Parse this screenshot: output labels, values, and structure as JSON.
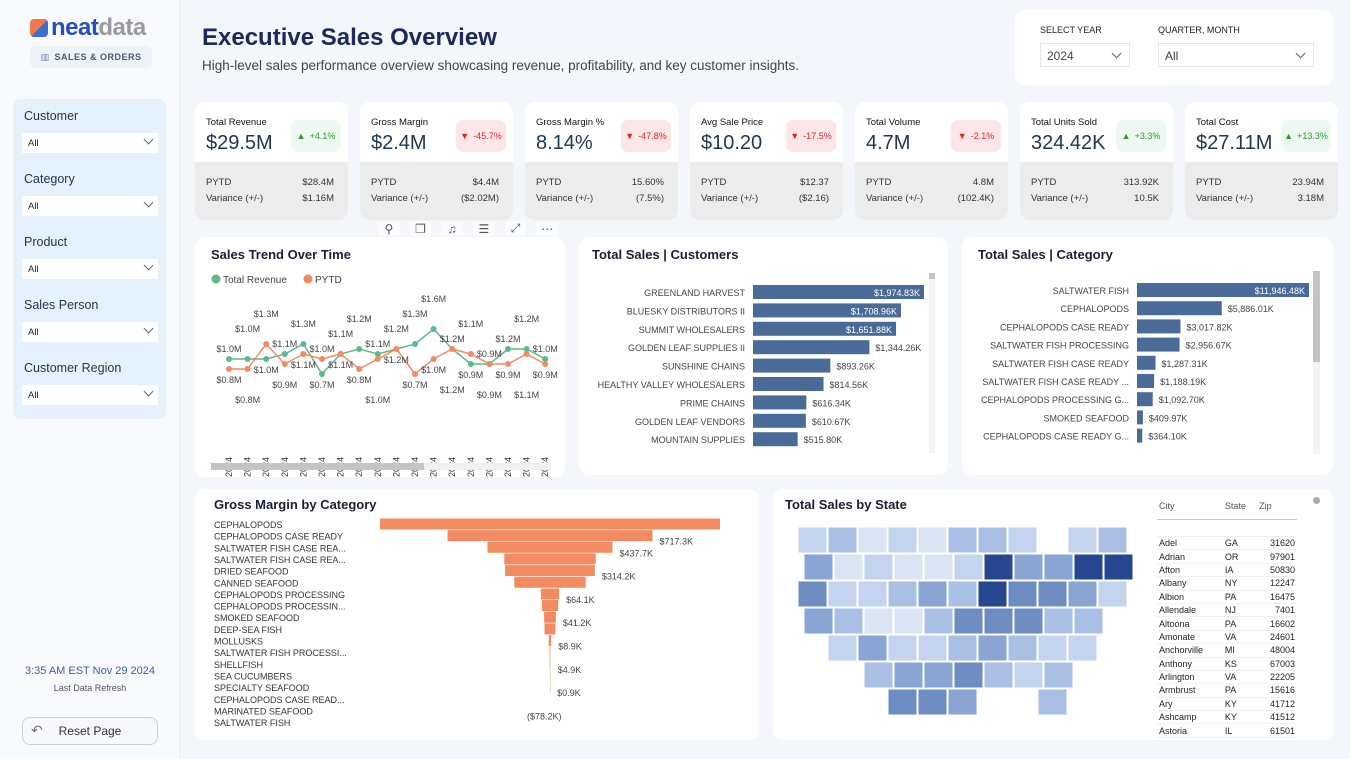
{
  "brand": {
    "logo_part1": "neat",
    "logo_part2": "data",
    "section": "SALES & ORDERS"
  },
  "header": {
    "title": "Executive Sales Overview",
    "subtitle": "High-level sales performance overview showcasing revenue, profitability, and key customer insights."
  },
  "period_filters": {
    "year_label": "SELECT YEAR",
    "year_value": "2024",
    "quarter_label": "QUARTER, MONTH",
    "quarter_value": "All"
  },
  "sidebar_filters": [
    {
      "label": "Customer",
      "value": "All"
    },
    {
      "label": "Category",
      "value": "All"
    },
    {
      "label": "Product",
      "value": "All"
    },
    {
      "label": "Sales Person",
      "value": "All"
    },
    {
      "label": "Customer Region",
      "value": "All"
    }
  ],
  "refresh": {
    "time": "3:35 AM EST Nov 29 2024",
    "label": "Last Data Refresh"
  },
  "reset_label": "Reset Page",
  "kpis": [
    {
      "title": "Total Revenue",
      "value": "$29.5M",
      "change": "+4.1%",
      "dir": "up",
      "pytd": "$28.4M",
      "variance": "$1.16M"
    },
    {
      "title": "Gross Margin",
      "value": "$2.4M",
      "change": "-45.7%",
      "dir": "down",
      "pytd": "$4.4M",
      "variance": "($2.02M)"
    },
    {
      "title": "Gross Margin %",
      "value": "8.14%",
      "change": "-47.8%",
      "dir": "down",
      "pytd": "15.60%",
      "variance": "(7.5%)"
    },
    {
      "title": "Avg Sale Price",
      "value": "$10.20",
      "change": "-17.5%",
      "dir": "down",
      "pytd": "$12.37",
      "variance": "($2.16)"
    },
    {
      "title": "Total Volume",
      "value": "4.7M",
      "change": "-2.1%",
      "dir": "down",
      "pytd": "4.8M",
      "variance": "(102.4K)"
    },
    {
      "title": "Total Units Sold",
      "value": "324.42K",
      "change": "+3.3%",
      "dir": "up",
      "pytd": "313.92K",
      "variance": "10.5K"
    },
    {
      "title": "Total Cost",
      "value": "$27.11M",
      "change": "+13.3%",
      "dir": "up",
      "pytd": "23.94M",
      "variance": "3.18M"
    }
  ],
  "kpi_labels": {
    "pytd": "PYTD",
    "variance": "Variance (+/-)"
  },
  "colors": {
    "up": "#2a9a2a",
    "down": "#e0202a",
    "bar": "#4a6a97",
    "funnel": "#f28a62",
    "revenue": "#5bb98c",
    "pytd": "#f28a62"
  },
  "chart_data": [
    {
      "type": "line",
      "title": "Sales Trend Over Time",
      "categories": [
        "W01 2024",
        "W02 2024",
        "W03 2024",
        "W04 2024",
        "W05 2024",
        "W06 2024",
        "W07 2024",
        "W08 2024",
        "W09 2024",
        "W10 2024",
        "W11 2024",
        "W12 2024",
        "W13 2024",
        "W14 2024",
        "W15 2024",
        "W16 2024",
        "W17 2024",
        "W18 2024"
      ],
      "series": [
        {
          "name": "Total Revenue",
          "values": [
            1.0,
            1.0,
            1.0,
            1.1,
            1.3,
            0.7,
            1.1,
            1.2,
            1.1,
            1.2,
            1.3,
            1.6,
            1.2,
            0.9,
            0.9,
            1.2,
            1.2,
            1.0
          ]
        },
        {
          "name": "PYTD",
          "values": [
            0.8,
            0.8,
            1.3,
            0.9,
            1.1,
            1.0,
            1.1,
            0.8,
            1.0,
            1.2,
            0.7,
            1.0,
            1.2,
            1.1,
            0.9,
            0.9,
            1.1,
            0.9
          ]
        }
      ],
      "unit": "$M",
      "legend": "top-left"
    },
    {
      "type": "bar",
      "orientation": "horizontal",
      "title": "Total Sales | Customers",
      "categories": [
        "GREENLAND HARVEST",
        "BLUESKY DISTRIBUTORS II",
        "SUMMIT WHOLESALERS",
        "GOLDEN LEAF SUPPLIES II",
        "SUNSHINE CHAINS",
        "HEALTHY VALLEY WHOLESALERS",
        "PRIME CHAINS",
        "GOLDEN LEAF VENDORS",
        "MOUNTAIN SUPPLIES"
      ],
      "values": [
        1974.83,
        1708.96,
        1651.88,
        1344.26,
        893.26,
        814.56,
        616.34,
        610.67,
        515.8
      ],
      "labels": [
        "$1,974.83K",
        "$1,708.96K",
        "$1,651.88K",
        "$1,344.26K",
        "$893.26K",
        "$814.56K",
        "$616.34K",
        "$610.67K",
        "$515.80K"
      ]
    },
    {
      "type": "bar",
      "orientation": "horizontal",
      "title": "Total Sales | Category",
      "categories": [
        "SALTWATER FISH",
        "CEPHALOPODS",
        "CEPHALOPODS CASE READY",
        "SALTWATER FISH PROCESSING",
        "SALTWATER FISH CASE READY",
        "SALTWATER FISH CASE READY ...",
        "CEPHALOPODS PROCESSING G...",
        "SMOKED SEAFOOD",
        "CEPHALOPODS CASE READY G..."
      ],
      "values": [
        11946.48,
        5886.01,
        3017.82,
        2956.67,
        1287.31,
        1188.19,
        1092.7,
        409.97,
        364.1
      ],
      "labels": [
        "$11,946.48K",
        "$5,886.01K",
        "$3,017.82K",
        "$2,956.67K",
        "$1,287.31K",
        "$1,188.19K",
        "$1,092.70K",
        "$409.97K",
        "$364.10K"
      ]
    },
    {
      "type": "bar",
      "orientation": "funnel",
      "title": "Gross Margin by Category",
      "categories": [
        "CEPHALOPODS",
        "CEPHALOPODS CASE READY",
        "SALTWATER FISH CASE REA...",
        "SALTWATER FISH CASE REA...",
        "DRIED SEAFOOD",
        "CANNED SEAFOOD",
        "CEPHALOPODS PROCESSING",
        "CEPHALOPODS PROCESSIN...",
        "SMOKED SEAFOOD",
        "DEEP-SEA FISH",
        "MOLLUSKS",
        "SALTWATER FISH PROCESSI...",
        "SHELLFISH",
        "SEA CUCUMBERS",
        "SPECIALTY SEAFOOD",
        "CEPHALOPODS CASE READ...",
        "MARINATED SEAFOOD",
        "SALTWATER FISH"
      ],
      "values": [
        1190,
        717.3,
        437.7,
        320,
        314.2,
        250,
        64.1,
        57,
        41.2,
        38,
        8.9,
        6,
        4.9,
        1.5,
        0.9,
        0,
        -78.2,
        0
      ],
      "labels": [
        "",
        "$717.3K",
        "$437.7K",
        "",
        "$314.2K",
        "",
        "$64.1K",
        "",
        "$41.2K",
        "",
        "$8.9K",
        "",
        "$4.9K",
        "",
        "$0.9K",
        "",
        "($78.2K)",
        ""
      ]
    }
  ],
  "map": {
    "title": "Total Sales by State",
    "table": {
      "columns": [
        "City",
        "State",
        "Zip"
      ],
      "rows": [
        [
          "Adel",
          "GA",
          "31620"
        ],
        [
          "Adrian",
          "OR",
          "97901"
        ],
        [
          "Afton",
          "IA",
          "50830"
        ],
        [
          "Albany",
          "NY",
          "12247"
        ],
        [
          "Albion",
          "PA",
          "16475"
        ],
        [
          "Allendale",
          "NJ",
          "7401"
        ],
        [
          "Altoona",
          "PA",
          "16602"
        ],
        [
          "Amonate",
          "VA",
          "24601"
        ],
        [
          "Anchorville",
          "MI",
          "48004"
        ],
        [
          "Anthony",
          "KS",
          "67003"
        ],
        [
          "Arlington",
          "VA",
          "22205"
        ],
        [
          "Armbrust",
          "PA",
          "15616"
        ],
        [
          "Ary",
          "KY",
          "41712"
        ],
        [
          "Ashcamp",
          "KY",
          "41512"
        ],
        [
          "Astoria",
          "IL",
          "61501"
        ]
      ]
    }
  }
}
